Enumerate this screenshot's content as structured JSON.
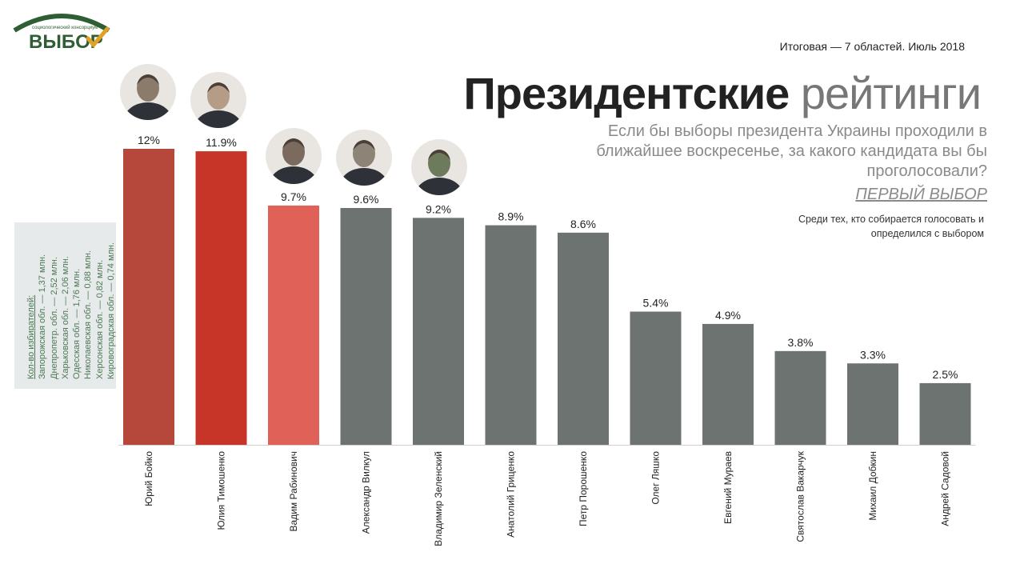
{
  "header": {
    "logo_small": "социологический консорциум",
    "logo_text": "ВЫБОР",
    "period": "Итоговая — 7 областей. Июль 2018",
    "title_bold": "Президентские",
    "title_light": "рейтинги",
    "question": "Если бы выборы президента Украины проходили в ближайшее воскресенье, за какого кандидата вы бы проголосовали?",
    "first_choice": "ПЕРВЫЙ ВЫБОР",
    "note": "Среди тех, кто собирается голосовать и определился с выбором"
  },
  "voters": {
    "title": "Кол-во избирателей:",
    "lines": [
      "Запорожская обл. — 1,37 млн.",
      "Днепропетр. обл. — 2,52 млн.",
      "Харьковская обл. — 2,06 млн.",
      "Одесская обл. — 1,76 млн.",
      "Николаевская обл. — 0,88 млн.",
      "Херсонская обл. — 0,82 млн.",
      "Кировоградская обл. — 0,74 млн."
    ]
  },
  "colors": {
    "boyko": "#b5483b",
    "tymoshenko": "#c63527",
    "rabinovich": "#df6157",
    "others": "#6d7370",
    "logo_green": "#2f5e34",
    "logo_check": "#e0a126"
  },
  "chart_data": {
    "type": "bar",
    "categories": [
      "Юрий Бойко",
      "Юлия Тимошенко",
      "Вадим Рабинович",
      "Александр Вилкул",
      "Владимир Зеленский",
      "Анатолий Гриценко",
      "Петр Порошенко",
      "Олег Ляшко",
      "Евгений Мураев",
      "Святослав Вакарчук",
      "Михаил Добкин",
      "Андрей Садовой"
    ],
    "values": [
      12,
      11.9,
      9.7,
      9.6,
      9.2,
      8.9,
      8.6,
      5.4,
      4.9,
      3.8,
      3.3,
      2.5
    ],
    "value_labels": [
      "12%",
      "11.9%",
      "9.7%",
      "9.6%",
      "9.2%",
      "8.9%",
      "8.6%",
      "5.4%",
      "4.9%",
      "3.8%",
      "3.3%",
      "2.5%"
    ],
    "bar_colors": [
      "#b5483b",
      "#c63527",
      "#df6157",
      "#6d7370",
      "#6d7370",
      "#6d7370",
      "#6d7370",
      "#6d7370",
      "#6d7370",
      "#6d7370",
      "#6d7370",
      "#6d7370"
    ],
    "photos_for": [
      "Юрий Бойко",
      "Юлия Тимошенко",
      "Вадим Рабинович",
      "Александр Вилкул",
      "Владимир Зеленский"
    ],
    "ylim": [
      0,
      12
    ],
    "grid": false,
    "legend": "none"
  }
}
